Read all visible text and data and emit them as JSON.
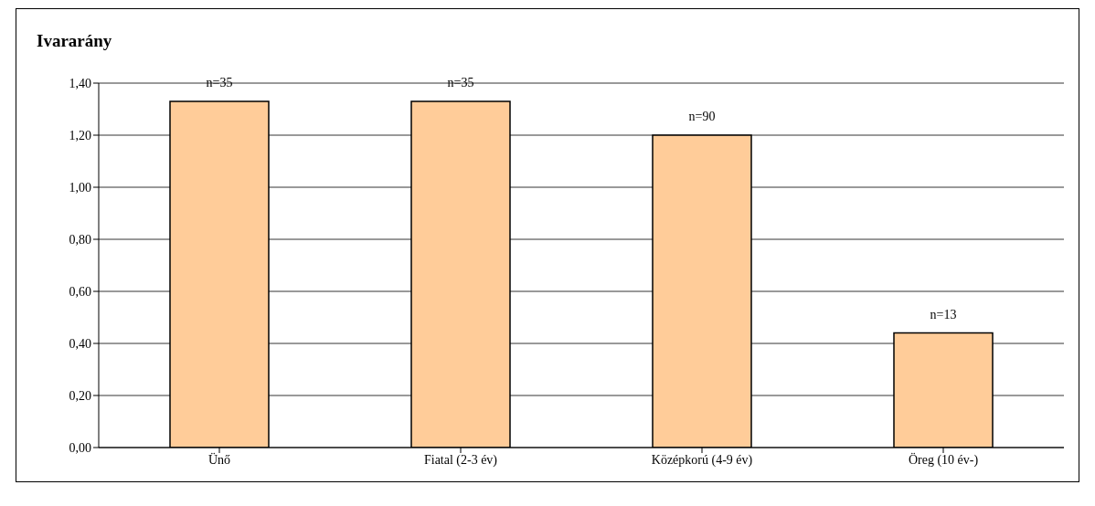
{
  "chart_data": {
    "type": "bar",
    "title": "Ivararány",
    "categories": [
      "Ünő",
      "Fiatal (2-3 év)",
      "Középkorú (4-9 év)",
      "Öreg (10 év-)"
    ],
    "values": [
      1.33,
      1.33,
      1.2,
      0.44
    ],
    "color": "#ffcc99",
    "ylim": [
      0,
      1.4
    ],
    "yticks": [
      {
        "value": 0,
        "label": "0,00"
      },
      {
        "value": 0.2,
        "label": "0,20"
      },
      {
        "value": 0.4,
        "label": "0,40"
      },
      {
        "value": 0.6,
        "label": "0,60"
      },
      {
        "value": 0.8,
        "label": "0,80"
      },
      {
        "value": 1,
        "label": "1,00"
      },
      {
        "value": 1.2,
        "label": "1,20"
      },
      {
        "value": 1.4,
        "label": "1,40"
      }
    ],
    "grid": "y",
    "legend": false,
    "annotations": [
      {
        "text": "n=35",
        "x": "Ünő",
        "y": 1.33
      },
      {
        "text": "n=35",
        "x": "Fiatal (2-3 év)",
        "y": 1.33
      },
      {
        "text": "n=90",
        "x": "Középkorú (4-9 év)",
        "y": 1.2
      },
      {
        "text": "n=13",
        "x": "Öreg (10 év-)",
        "y": 0.44
      }
    ]
  }
}
